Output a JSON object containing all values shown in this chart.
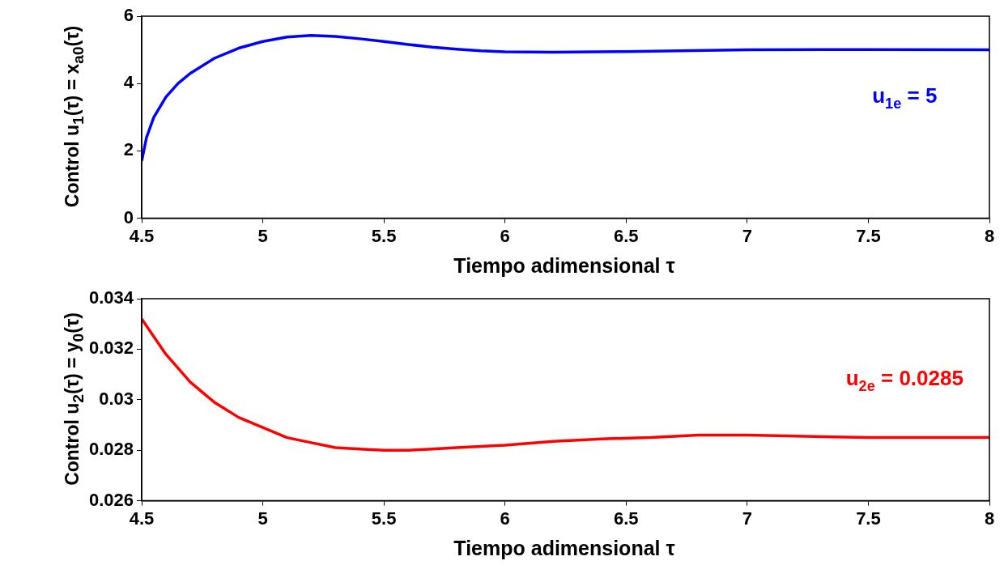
{
  "chart_data": [
    {
      "type": "line",
      "xlabel": "Tiempo adimensional τ",
      "ylabel": "Control u$_{1}$(τ) = x$_{a0}$(τ)",
      "x": [
        4.5,
        4.52,
        4.55,
        4.6,
        4.65,
        4.7,
        4.8,
        4.9,
        5.0,
        5.1,
        5.2,
        5.3,
        5.4,
        5.5,
        5.6,
        5.7,
        5.8,
        5.9,
        6.0,
        6.2,
        6.5,
        7.0,
        7.5,
        8.0
      ],
      "series": [
        {
          "color": "#0000ff",
          "values": [
            1.7,
            2.4,
            3.0,
            3.6,
            4.0,
            4.3,
            4.75,
            5.05,
            5.25,
            5.38,
            5.43,
            5.4,
            5.33,
            5.25,
            5.16,
            5.08,
            5.02,
            4.97,
            4.94,
            4.93,
            4.95,
            5.0,
            5.01,
            5.0
          ]
        }
      ],
      "xlim": [
        4.5,
        8
      ],
      "xticks": [
        4.5,
        5,
        5.5,
        6,
        6.5,
        7,
        7.5,
        8
      ],
      "ylim": [
        0,
        6
      ],
      "yticks": [
        0,
        2,
        4,
        6
      ],
      "grid": false,
      "legend": false,
      "marker": "none",
      "line_style": "solid",
      "annotations": [
        "u$_{1e}$ = 5"
      ]
    },
    {
      "type": "line",
      "xlabel": "Tiempo adimensional τ",
      "ylabel": "Control u$_{2}$(τ) = y$_{0}$(τ)",
      "x": [
        4.5,
        4.6,
        4.7,
        4.8,
        4.9,
        5.0,
        5.1,
        5.2,
        5.3,
        5.4,
        5.5,
        5.6,
        5.7,
        5.8,
        5.9,
        6.0,
        6.2,
        6.4,
        6.6,
        6.8,
        7.0,
        7.5,
        8.0
      ],
      "series": [
        {
          "color": "#ff0000",
          "values": [
            0.0332,
            0.0318,
            0.0307,
            0.0299,
            0.0293,
            0.0289,
            0.0285,
            0.0283,
            0.0281,
            0.02805,
            0.028,
            0.028,
            0.02805,
            0.0281,
            0.02815,
            0.0282,
            0.02835,
            0.02845,
            0.0285,
            0.0286,
            0.0286,
            0.0285,
            0.0285
          ]
        }
      ],
      "xlim": [
        4.5,
        8
      ],
      "xticks": [
        4.5,
        5,
        5.5,
        6,
        6.5,
        7,
        7.5,
        8
      ],
      "ylim": [
        0.026,
        0.034
      ],
      "yticks": [
        0.026,
        0.028,
        0.03,
        0.032,
        0.034
      ],
      "grid": false,
      "legend": false,
      "marker": "none",
      "line_style": "solid",
      "annotations": [
        "u$_{2e}$ = 0.0285"
      ]
    }
  ]
}
